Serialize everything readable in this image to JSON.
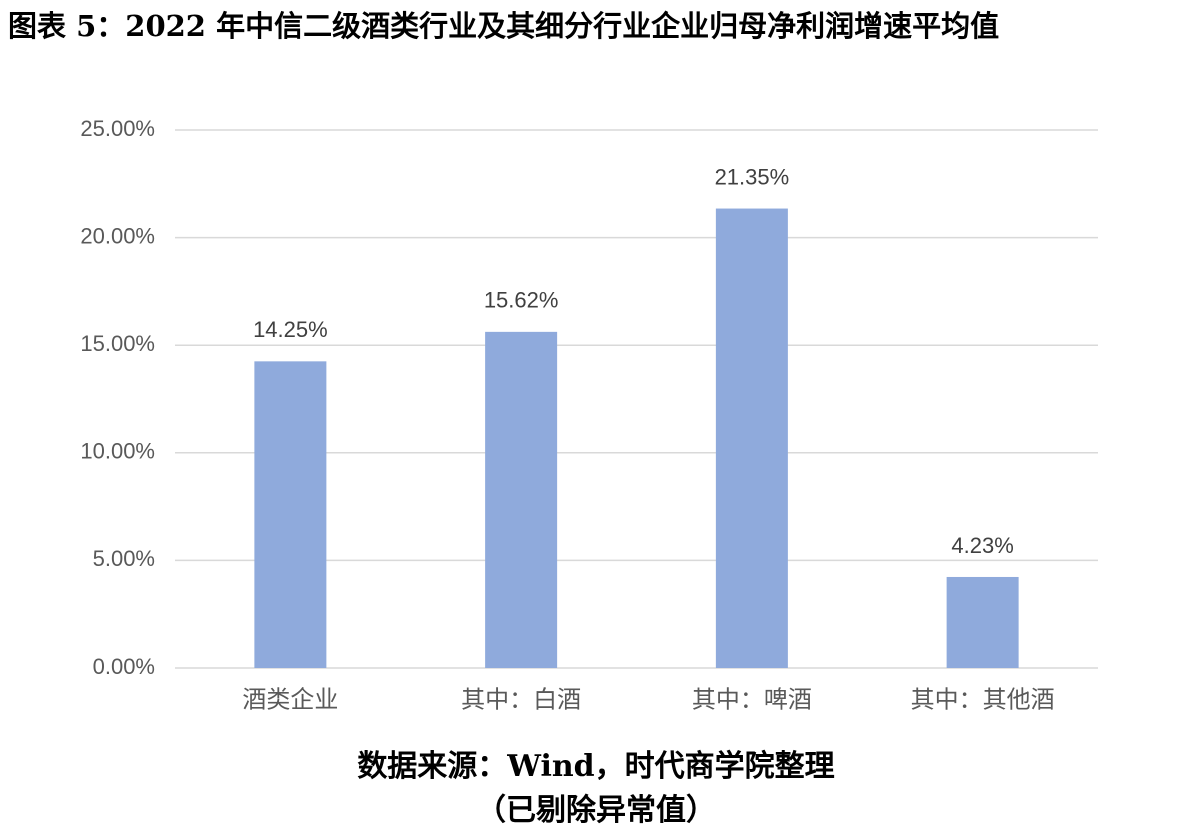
{
  "chart_data": {
    "type": "bar",
    "title": "图表 5：2022 年中信二级酒类行业及其细分行业企业归母净利润增速平均值",
    "categories": [
      "酒类企业",
      "其中：白酒",
      "其中：啤酒",
      "其中：其他酒"
    ],
    "values": [
      14.25,
      15.62,
      21.35,
      4.23
    ],
    "value_labels": [
      "14.25%",
      "15.62%",
      "21.35%",
      "4.23%"
    ],
    "color": "#8faadc",
    "ylim": [
      0,
      25
    ],
    "yticks": [
      {
        "value": 0,
        "label": "0.00%"
      },
      {
        "value": 5,
        "label": "5.00%"
      },
      {
        "value": 10,
        "label": "10.00%"
      },
      {
        "value": 15,
        "label": "15.00%"
      },
      {
        "value": 20,
        "label": "20.00%"
      },
      {
        "value": 25,
        "label": "25.00%"
      }
    ],
    "grid": true,
    "source": "数据来源：Wind，时代商学院整理",
    "note": "（已剔除异常值）"
  }
}
